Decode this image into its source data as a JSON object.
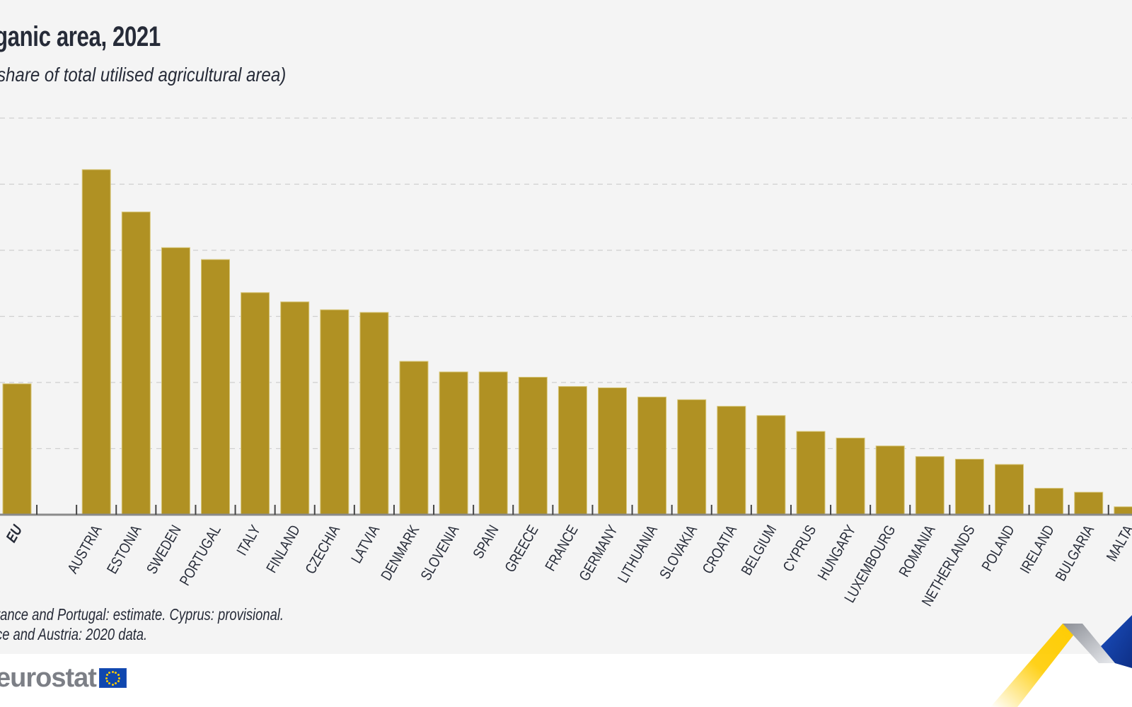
{
  "header": {
    "title": "ganic area, 2021",
    "subtitle": "share of total utilised agricultural area)"
  },
  "footnotes": [
    "rance and Portugal: estimate.  Cyprus: provisional.",
    "ce and Austria: 2020 data."
  ],
  "branding": {
    "logo_text": "eurostat",
    "flag_icon": "eu-flag-icon"
  },
  "colors": {
    "bar": "#b09123",
    "bar_edge": "#d8c77a",
    "text": "#262b38",
    "gridline": "#cfcfcf",
    "axis": "#8a8a8a",
    "panel_bg": "#f4f4f4"
  },
  "chart_data": {
    "type": "bar",
    "title": "ganic area, 2021",
    "subtitle": "share of total utilised agricultural area)",
    "xlabel": "",
    "ylabel": "",
    "unit": "%",
    "ylim": [
      0,
      30
    ],
    "yticks": [
      0,
      5,
      10,
      15,
      20,
      25,
      30
    ],
    "grid": true,
    "gap_after_first": true,
    "categories": [
      "EU",
      "AUSTRIA",
      "ESTONIA",
      "SWEDEN",
      "PORTUGAL",
      "ITALY",
      "FINLAND",
      "CZECHIA",
      "LATVIA",
      "DENMARK",
      "SLOVENIA",
      "SPAIN",
      "GREECE",
      "FRANCE",
      "GERMANY",
      "LITHUANIA",
      "SLOVAKIA",
      "CROATIA",
      "BELGIUM",
      "CYPRUS",
      "HUNGARY",
      "LUXEMBOURG",
      "ROMANIA",
      "NETHERLANDS",
      "POLAND",
      "IRELAND",
      "BULGARIA",
      "MALTA"
    ],
    "values": [
      9.9,
      26.1,
      22.9,
      20.2,
      19.3,
      16.8,
      16.1,
      15.5,
      15.3,
      11.6,
      10.8,
      10.8,
      10.4,
      9.7,
      9.6,
      8.9,
      8.7,
      8.2,
      7.5,
      6.3,
      5.8,
      5.2,
      4.4,
      4.2,
      3.8,
      2.0,
      1.7,
      0.6
    ],
    "highlight": [
      "EU"
    ]
  }
}
